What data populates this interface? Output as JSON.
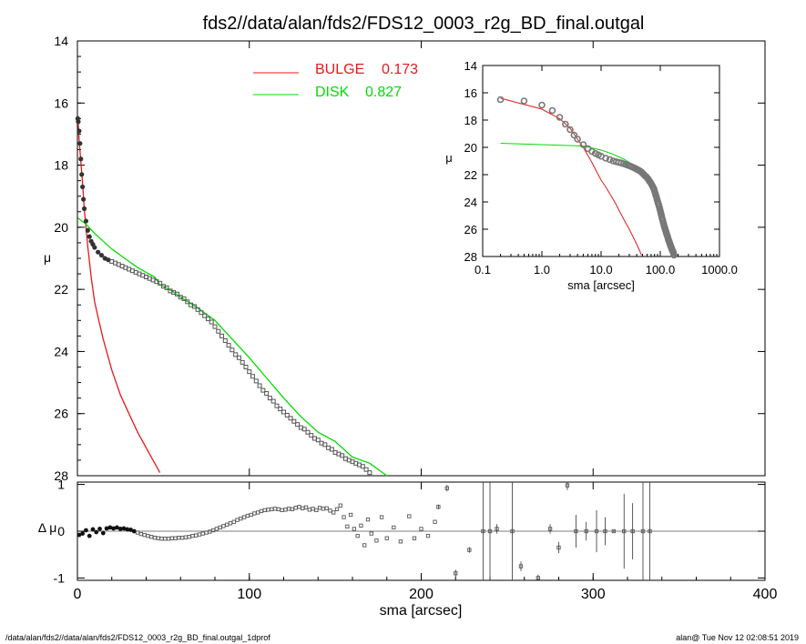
{
  "figure": {
    "title": "fds2//data/alan/fds2/FDS12_0003_r2g_BD_final.outgal",
    "footer_left": "/data/alan/fds2//data/alan/fds2/FDS12_0003_r2g_BD_final.outgal_1dprof",
    "footer_right": "alan@  Tue Nov 12 02:08:51 2019"
  },
  "colors": {
    "bulge": "#e41a1c",
    "disk": "#00dd00",
    "data": "#555555",
    "axis": "#000000"
  },
  "chart_data": [
    {
      "id": "main",
      "type": "line",
      "xlim": [
        0,
        400
      ],
      "ylim": [
        28,
        14
      ],
      "ylabel": "μ",
      "yticks": [
        14,
        16,
        18,
        20,
        22,
        24,
        26,
        28
      ],
      "legend": [
        {
          "name": "BULGE",
          "value": "0.173",
          "color": "#e41a1c"
        },
        {
          "name": "DISK",
          "value": "0.827",
          "color": "#00dd00"
        }
      ],
      "series": [
        {
          "key": "bulge",
          "x": [
            0.2,
            1,
            2,
            3,
            4,
            5,
            6,
            7,
            8,
            10,
            12,
            15,
            18,
            20,
            25,
            30,
            35,
            40,
            45,
            48
          ],
          "y": [
            16.4,
            17.2,
            17.9,
            18.6,
            19.4,
            20.0,
            20.6,
            21.1,
            21.6,
            22.4,
            22.9,
            23.6,
            24.2,
            24.6,
            25.4,
            26.0,
            26.6,
            27.1,
            27.6,
            27.9
          ]
        },
        {
          "key": "disk",
          "x": [
            0.2,
            5,
            10,
            15,
            20,
            25,
            30,
            35,
            40,
            45,
            48,
            50,
            55,
            60,
            70,
            80,
            90,
            100,
            110,
            120,
            130,
            140,
            150,
            160,
            170,
            180
          ],
          "y": [
            19.7,
            19.9,
            20.2,
            20.45,
            20.7,
            20.9,
            21.1,
            21.3,
            21.45,
            21.6,
            21.85,
            21.9,
            22.05,
            22.25,
            22.6,
            23.0,
            23.6,
            24.2,
            24.85,
            25.5,
            26.1,
            26.6,
            26.9,
            27.4,
            27.6,
            28.0
          ]
        },
        {
          "key": "data",
          "x": [
            0.2,
            0.5,
            1,
            1.5,
            2,
            2.5,
            3,
            3.5,
            4,
            5,
            6,
            7,
            8,
            9,
            10,
            12,
            14,
            16,
            18,
            20,
            22,
            24,
            26,
            28,
            30,
            32,
            34,
            36,
            38,
            40,
            42,
            44,
            46,
            48,
            50,
            52,
            54,
            56,
            58,
            60,
            62,
            64,
            66,
            68,
            70,
            72,
            74,
            76,
            78,
            80,
            82,
            84,
            86,
            88,
            90,
            92,
            94,
            96,
            98,
            100,
            102,
            104,
            106,
            108,
            110,
            112,
            114,
            116,
            118,
            120,
            122,
            124,
            126,
            128,
            130,
            132,
            134,
            136,
            138,
            140,
            142,
            144,
            146,
            148,
            150,
            152,
            154,
            156,
            158,
            160,
            162,
            164,
            166,
            168,
            170
          ],
          "y": [
            16.5,
            16.6,
            16.9,
            17.3,
            17.8,
            18.3,
            18.7,
            19.1,
            19.4,
            19.8,
            20.1,
            20.3,
            20.45,
            20.55,
            20.65,
            20.8,
            20.9,
            21.0,
            21.05,
            21.1,
            21.15,
            21.2,
            21.25,
            21.3,
            21.35,
            21.4,
            21.45,
            21.5,
            21.55,
            21.6,
            21.65,
            21.7,
            21.75,
            21.8,
            21.9,
            21.95,
            22.05,
            22.1,
            22.15,
            22.25,
            22.3,
            22.4,
            22.5,
            22.55,
            22.65,
            22.75,
            22.85,
            22.95,
            23.05,
            23.2,
            23.35,
            23.5,
            23.65,
            23.8,
            23.95,
            24.1,
            24.2,
            24.35,
            24.5,
            24.65,
            24.8,
            24.95,
            25.1,
            25.25,
            25.35,
            25.5,
            25.6,
            25.75,
            25.85,
            25.95,
            26.05,
            26.15,
            26.25,
            26.35,
            26.45,
            26.5,
            26.6,
            26.7,
            26.8,
            26.85,
            26.95,
            27.0,
            27.1,
            27.15,
            27.25,
            27.3,
            27.35,
            27.45,
            27.5,
            27.55,
            27.6,
            27.65,
            27.7,
            27.8,
            27.9
          ]
        }
      ]
    },
    {
      "id": "inset",
      "type": "line",
      "xscale": "log",
      "xlim": [
        0.1,
        1000
      ],
      "ylim": [
        28,
        14
      ],
      "xlabel": "sma [arcsec]",
      "ylabel": "μ",
      "xticks": [
        "0.1",
        "1.0",
        "10.0",
        "100.0",
        "1000.0"
      ],
      "yticks": [
        14,
        16,
        18,
        20,
        22,
        24,
        26,
        28
      ]
    },
    {
      "id": "residual",
      "type": "scatter",
      "xlim": [
        0,
        400
      ],
      "ylim": [
        -1.05,
        1.05
      ],
      "xlabel": "sma [arcsec]",
      "ylabel": "Δ μ",
      "xticks": [
        0,
        100,
        200,
        300,
        400
      ],
      "yticks": [
        1,
        0,
        -1
      ],
      "points": [
        {
          "x": 1,
          "y": -0.08
        },
        {
          "x": 3,
          "y": -0.05
        },
        {
          "x": 5,
          "y": 0.02
        },
        {
          "x": 7,
          "y": -0.1
        },
        {
          "x": 9,
          "y": 0.04
        },
        {
          "x": 11,
          "y": -0.02
        },
        {
          "x": 13,
          "y": 0.05
        },
        {
          "x": 15,
          "y": -0.04
        },
        {
          "x": 17,
          "y": 0.06
        },
        {
          "x": 19,
          "y": 0.08
        },
        {
          "x": 21,
          "y": 0.06
        },
        {
          "x": 23,
          "y": 0.08
        },
        {
          "x": 25,
          "y": 0.05
        },
        {
          "x": 27,
          "y": 0.06
        },
        {
          "x": 29,
          "y": 0.04
        },
        {
          "x": 31,
          "y": 0.03
        },
        {
          "x": 33,
          "y": 0.0
        },
        {
          "x": 35,
          "y": -0.03
        },
        {
          "x": 37,
          "y": -0.06
        },
        {
          "x": 39,
          "y": -0.08
        },
        {
          "x": 41,
          "y": -0.1
        },
        {
          "x": 43,
          "y": -0.12
        },
        {
          "x": 45,
          "y": -0.14
        },
        {
          "x": 47,
          "y": -0.15
        },
        {
          "x": 49,
          "y": -0.16
        },
        {
          "x": 51,
          "y": -0.16
        },
        {
          "x": 53,
          "y": -0.16
        },
        {
          "x": 55,
          "y": -0.15
        },
        {
          "x": 57,
          "y": -0.15
        },
        {
          "x": 59,
          "y": -0.14
        },
        {
          "x": 61,
          "y": -0.14
        },
        {
          "x": 63,
          "y": -0.13
        },
        {
          "x": 65,
          "y": -0.12
        },
        {
          "x": 67,
          "y": -0.1
        },
        {
          "x": 69,
          "y": -0.09
        },
        {
          "x": 71,
          "y": -0.07
        },
        {
          "x": 73,
          "y": -0.05
        },
        {
          "x": 75,
          "y": -0.03
        },
        {
          "x": 77,
          "y": -0.01
        },
        {
          "x": 79,
          "y": 0.02
        },
        {
          "x": 81,
          "y": 0.05
        },
        {
          "x": 83,
          "y": 0.08
        },
        {
          "x": 85,
          "y": 0.11
        },
        {
          "x": 87,
          "y": 0.14
        },
        {
          "x": 89,
          "y": 0.17
        },
        {
          "x": 91,
          "y": 0.2
        },
        {
          "x": 93,
          "y": 0.24
        },
        {
          "x": 95,
          "y": 0.27
        },
        {
          "x": 97,
          "y": 0.3
        },
        {
          "x": 99,
          "y": 0.33
        },
        {
          "x": 101,
          "y": 0.35
        },
        {
          "x": 103,
          "y": 0.38
        },
        {
          "x": 105,
          "y": 0.4
        },
        {
          "x": 107,
          "y": 0.43
        },
        {
          "x": 109,
          "y": 0.45
        },
        {
          "x": 111,
          "y": 0.46
        },
        {
          "x": 113,
          "y": 0.47
        },
        {
          "x": 115,
          "y": 0.48
        },
        {
          "x": 117,
          "y": 0.47
        },
        {
          "x": 119,
          "y": 0.45
        },
        {
          "x": 121,
          "y": 0.46
        },
        {
          "x": 123,
          "y": 0.48
        },
        {
          "x": 125,
          "y": 0.47
        },
        {
          "x": 127,
          "y": 0.5
        },
        {
          "x": 129,
          "y": 0.52
        },
        {
          "x": 131,
          "y": 0.49
        },
        {
          "x": 133,
          "y": 0.51
        },
        {
          "x": 135,
          "y": 0.46
        },
        {
          "x": 137,
          "y": 0.48
        },
        {
          "x": 139,
          "y": 0.45
        },
        {
          "x": 141,
          "y": 0.5
        },
        {
          "x": 143,
          "y": 0.48
        },
        {
          "x": 145,
          "y": 0.49
        },
        {
          "x": 147,
          "y": 0.44
        },
        {
          "x": 149,
          "y": 0.4
        },
        {
          "x": 151,
          "y": 0.47
        },
        {
          "x": 153,
          "y": 0.55
        },
        {
          "x": 155,
          "y": 0.3
        },
        {
          "x": 157,
          "y": 0.1
        },
        {
          "x": 159,
          "y": 0.35
        },
        {
          "x": 161,
          "y": 0.05
        },
        {
          "x": 163,
          "y": -0.1
        },
        {
          "x": 165,
          "y": 0.12
        },
        {
          "x": 167,
          "y": -0.3
        },
        {
          "x": 169,
          "y": 0.25
        },
        {
          "x": 171,
          "y": -0.05
        },
        {
          "x": 174,
          "y": -0.2
        },
        {
          "x": 177,
          "y": 0.3
        },
        {
          "x": 180,
          "y": -0.15
        },
        {
          "x": 184,
          "y": 0.08
        },
        {
          "x": 188,
          "y": -0.22
        },
        {
          "x": 193,
          "y": 0.32
        },
        {
          "x": 196,
          "y": -0.15
        },
        {
          "x": 200,
          "y": 0.05
        },
        {
          "x": 204,
          "y": -0.1
        },
        {
          "x": 208,
          "y": 0.2
        }
      ],
      "error_points": [
        {
          "x": 210,
          "y": 0.52,
          "e": 0.05
        },
        {
          "x": 215,
          "y": 0.92,
          "e": 0.07
        },
        {
          "x": 220,
          "y": -0.9,
          "e": 0.08
        },
        {
          "x": 228,
          "y": -0.4,
          "e": 0.06
        },
        {
          "x": 236,
          "y": 0.0,
          "e": 1.2
        },
        {
          "x": 240,
          "y": 0.0,
          "e": 1.2
        },
        {
          "x": 244,
          "y": 0.05,
          "e": 0.1
        },
        {
          "x": 253,
          "y": 0.0,
          "e": 1.2
        },
        {
          "x": 258,
          "y": -0.75,
          "e": 0.1
        },
        {
          "x": 268,
          "y": -1.0,
          "e": 0.07
        },
        {
          "x": 275,
          "y": 0.05,
          "e": 0.1
        },
        {
          "x": 280,
          "y": -0.35,
          "e": 0.12
        },
        {
          "x": 285,
          "y": 0.98,
          "e": 0.1
        },
        {
          "x": 290,
          "y": 0.0,
          "e": 0.35
        },
        {
          "x": 296,
          "y": 0.0,
          "e": 0.2
        },
        {
          "x": 302,
          "y": 0.0,
          "e": 0.45
        },
        {
          "x": 307,
          "y": 0.0,
          "e": 0.3
        },
        {
          "x": 312,
          "y": 0.0,
          "e": 0.02
        },
        {
          "x": 318,
          "y": 0.0,
          "e": 0.8
        },
        {
          "x": 323,
          "y": 0.0,
          "e": 0.6
        },
        {
          "x": 329,
          "y": 0.0,
          "e": 1.2
        },
        {
          "x": 333,
          "y": 0.0,
          "e": 1.2
        }
      ]
    }
  ]
}
